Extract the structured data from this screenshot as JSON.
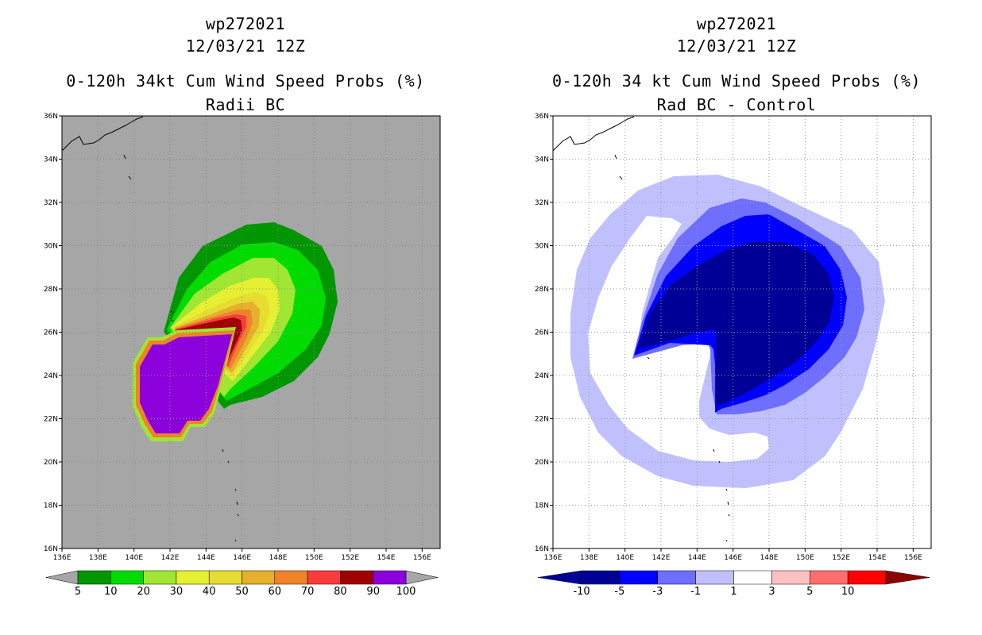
{
  "chart_data": [
    {
      "type": "heatmap",
      "storm_id": "wp272021",
      "datetime": "12/03/21 12Z",
      "title": "0-120h 34kt Cum Wind Speed Probs (%)",
      "subtitle": "Radii BC",
      "xlim": [
        136,
        157
      ],
      "ylim": [
        16,
        36
      ],
      "x_ticks": [
        "136E",
        "138E",
        "140E",
        "142E",
        "144E",
        "146E",
        "148E",
        "150E",
        "152E",
        "154E",
        "156E"
      ],
      "y_ticks": [
        "16N",
        "18N",
        "20N",
        "22N",
        "24N",
        "26N",
        "28N",
        "30N",
        "32N",
        "34N",
        "36N"
      ],
      "colorbar": {
        "labels": [
          "5",
          "10",
          "20",
          "30",
          "40",
          "50",
          "60",
          "70",
          "80",
          "90",
          "100"
        ],
        "colors": [
          "#009600",
          "#00dc00",
          "#a0e632",
          "#e6f032",
          "#e6dc32",
          "#e6af2d",
          "#f08228",
          "#fa3c3c",
          "#a00000",
          "#8c00dc"
        ],
        "low_color": "#a6a6a6",
        "high_color": "#a6a6a6"
      },
      "background_color": "#a6a6a6"
    },
    {
      "type": "heatmap",
      "storm_id": "wp272021",
      "datetime": "12/03/21 12Z",
      "title": "0-120h 34 kt Cum Wind Speed Probs (%)",
      "subtitle": "Rad BC - Control",
      "xlim": [
        136,
        157
      ],
      "ylim": [
        16,
        36
      ],
      "x_ticks": [
        "136E",
        "138E",
        "140E",
        "142E",
        "144E",
        "146E",
        "148E",
        "150E",
        "152E",
        "154E",
        "156E"
      ],
      "y_ticks": [
        "16N",
        "18N",
        "20N",
        "22N",
        "24N",
        "26N",
        "28N",
        "30N",
        "32N",
        "34N",
        "36N"
      ],
      "colorbar": {
        "labels": [
          "-10",
          "-5",
          "-3",
          "-1",
          "1",
          "3",
          "5",
          "10"
        ],
        "colors": [
          "#000096",
          "#0000ff",
          "#6e6eff",
          "#c0c0ff",
          "#ffffff",
          "#ffc0c0",
          "#ff6e6e",
          "#ff0000"
        ],
        "low_color": "#000096",
        "high_color": "#8c0000"
      },
      "background_color": "#ffffff"
    }
  ]
}
